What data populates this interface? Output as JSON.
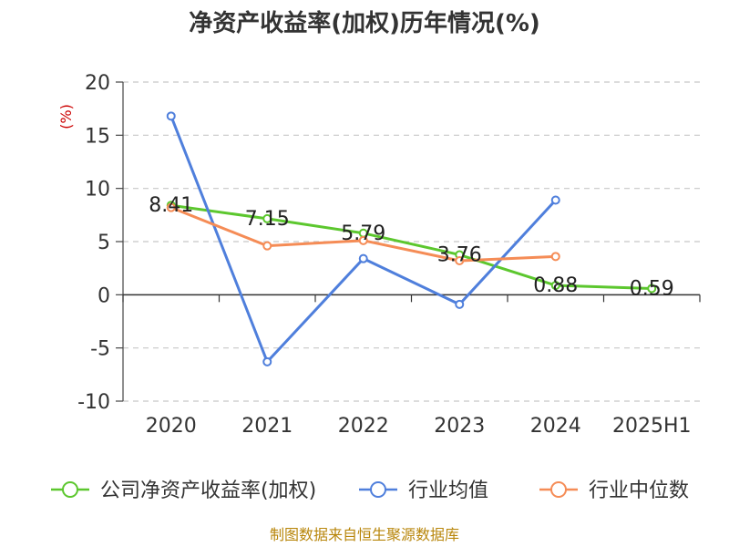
{
  "chart_data": {
    "type": "line",
    "title": "净资产收益率(加权)历年情况(%)",
    "ylabel": "(%)",
    "categories": [
      "2020",
      "2021",
      "2022",
      "2023",
      "2024",
      "2025H1"
    ],
    "ylim": [
      -10,
      20
    ],
    "yticks": [
      20,
      15,
      10,
      5,
      0,
      -5,
      -10
    ],
    "ytick_labels": [
      "20",
      "15",
      "10",
      "5",
      "0",
      "-5",
      "-10"
    ],
    "grid": true,
    "legend_position": "bottom",
    "series": [
      {
        "name": "公司净资产收益率(加权)",
        "color": "#5cc72e",
        "values": [
          8.41,
          7.15,
          5.79,
          3.76,
          0.88,
          0.59
        ],
        "labels": [
          "8.41",
          "7.15",
          "5.79",
          "3.76",
          "0.88",
          "0.59"
        ]
      },
      {
        "name": "行业均值",
        "color": "#4f7fdc",
        "values": [
          16.8,
          -6.3,
          3.4,
          -0.9,
          8.9,
          null
        ]
      },
      {
        "name": "行业中位数",
        "color": "#f58c56",
        "values": [
          8.2,
          4.6,
          5.1,
          3.2,
          3.6,
          null
        ]
      }
    ]
  },
  "source_text": "制图数据来自恒生聚源数据库"
}
